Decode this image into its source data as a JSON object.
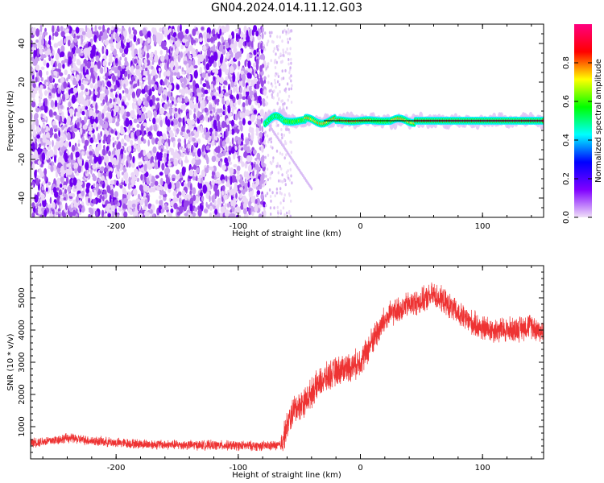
{
  "title": "GN04.2024.014.11.12.G03",
  "chart_data": [
    {
      "type": "heatmap",
      "name": "spectrogram",
      "xlabel": "Height of straight line (km)",
      "ylabel": "Frequency (Hz)",
      "xlim": [
        -270,
        150
      ],
      "ylim": [
        -50,
        50
      ],
      "xticks": [
        -200,
        -100,
        0,
        100
      ],
      "yticks": [
        -40,
        -20,
        0,
        20,
        40
      ],
      "grid": false,
      "colorbar": {
        "label": "Normalized spectral amplitude",
        "range": [
          0,
          1
        ],
        "ticks": [
          0.0,
          0.2,
          0.4,
          0.6,
          0.8
        ],
        "colormap": [
          "#f0e0f8",
          "#8000ff",
          "#0000ff",
          "#00ffff",
          "#00ff00",
          "#ffff00",
          "#ff0000",
          "#ff0080"
        ]
      },
      "regions": [
        {
          "x_range": [
            -270,
            -78
          ],
          "freq_range": [
            -50,
            48
          ],
          "amplitude": [
            0.02,
            0.25
          ],
          "pattern": "noise"
        },
        {
          "x_range": [
            -78,
            150
          ],
          "center_freq": 0,
          "amplitude": [
            0.5,
            1.0
          ],
          "pattern": "narrow-band tone near 0 Hz"
        }
      ]
    },
    {
      "type": "line",
      "name": "snr",
      "xlabel": "Height of straight line (km)",
      "ylabel": "SNR (10 * v/v)",
      "xlim": [
        -270,
        150
      ],
      "ylim": [
        0,
        6000
      ],
      "xticks": [
        -200,
        -100,
        0,
        100
      ],
      "yticks": [
        1000,
        2000,
        3000,
        4000,
        5000
      ],
      "grid": false,
      "color": "#ee3333",
      "x": [
        -270,
        -250,
        -240,
        -220,
        -200,
        -180,
        -160,
        -140,
        -120,
        -100,
        -80,
        -65,
        -62,
        -55,
        -45,
        -35,
        -25,
        -15,
        -5,
        0,
        5,
        10,
        15,
        20,
        25,
        30,
        40,
        50,
        60,
        70,
        80,
        90,
        100,
        110,
        120,
        130,
        140,
        150
      ],
      "values": [
        500,
        580,
        650,
        560,
        500,
        460,
        440,
        430,
        420,
        410,
        400,
        420,
        800,
        1500,
        1800,
        2300,
        2600,
        2800,
        2900,
        3050,
        3300,
        3700,
        4000,
        4300,
        4500,
        4600,
        4800,
        4900,
        5100,
        4850,
        4500,
        4250,
        4050,
        4000,
        4000,
        4050,
        4150,
        3900
      ]
    }
  ]
}
